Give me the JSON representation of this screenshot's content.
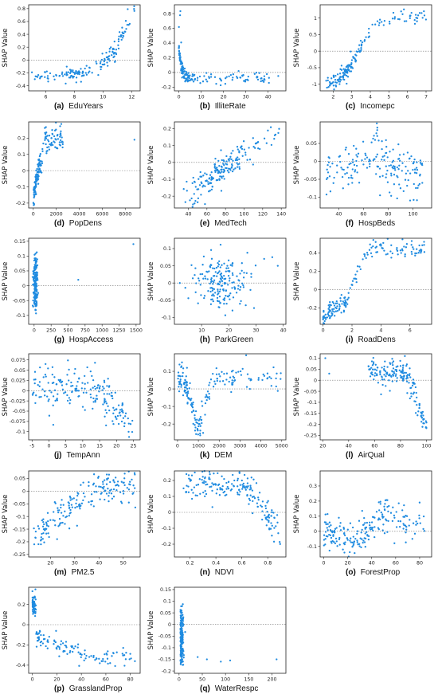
{
  "colors": {
    "points": "#1f8be0",
    "zero_line": "#777777",
    "axes": "#222222"
  },
  "chart_data": [
    {
      "type": "scatter",
      "letter": "(a)",
      "xlabel": "EduYears",
      "ylabel": "SHAP Value",
      "xlim": [
        4.8,
        12.6
      ],
      "ylim": [
        -0.48,
        0.86
      ],
      "xticks": [
        6,
        8,
        10,
        12
      ],
      "yticks": [
        -0.4,
        -0.2,
        0.0,
        0.2,
        0.4,
        0.6,
        0.8
      ],
      "pattern": "convex",
      "params": {
        "x0": 5.0,
        "x1": 12.2,
        "y0": -0.25,
        "y1": 0.78,
        "k": 4.5,
        "noise": 0.06,
        "n": 160,
        "c0": 8.2,
        "c1": 10.6,
        "cw": 0.55
      }
    },
    {
      "type": "scatter",
      "letter": "(b)",
      "xlabel": "IlliteRate",
      "ylabel": "SHAP Value",
      "xlim": [
        -2,
        48
      ],
      "ylim": [
        -0.25,
        0.92
      ],
      "xticks": [
        0,
        10,
        20,
        30,
        40
      ],
      "yticks": [
        -0.2,
        0.0,
        0.2,
        0.4,
        0.6,
        0.8
      ],
      "pattern": "decay",
      "params": {
        "x0": 0.3,
        "x1": 45,
        "yhigh": 0.35,
        "ylow": -0.08,
        "rate": 0.9,
        "noise": 0.04,
        "n": 170,
        "c0": 1.5,
        "cw": 3.0
      }
    },
    {
      "type": "scatter",
      "letter": "(c)",
      "xlabel": "Incomepc",
      "ylabel": "SHAP Value",
      "xlim": [
        1.3,
        7.3
      ],
      "ylim": [
        -1.2,
        1.4
      ],
      "xticks": [
        2,
        3,
        4,
        5,
        6,
        7
      ],
      "yticks": [
        -1.0,
        -0.5,
        0.0,
        0.5,
        1.0
      ],
      "pattern": "sigmoid",
      "params": {
        "x0": 1.5,
        "x1": 7.0,
        "ylow": -1.0,
        "yhigh": 1.05,
        "mid": 3.4,
        "k": 2.2,
        "noise": 0.12,
        "n": 160,
        "c0": 2.7,
        "cw": 0.5
      }
    },
    {
      "type": "scatter",
      "letter": "(d)",
      "xlabel": "PopDens",
      "ylabel": "SHAP Value",
      "xlim": [
        -400,
        9300
      ],
      "ylim": [
        -0.23,
        0.3
      ],
      "xticks": [
        0,
        2000,
        4000,
        6000,
        8000
      ],
      "yticks": [
        -0.2,
        -0.1,
        0.0,
        0.1,
        0.2
      ],
      "pattern": "rise",
      "params": {
        "x0": 0,
        "x1": 9000,
        "ylow": -0.2,
        "yhigh": 0.2,
        "scale": 600,
        "noise": 0.04,
        "n": 160,
        "c0": 300,
        "cw": 300
      }
    },
    {
      "type": "scatter",
      "letter": "(e)",
      "xlabel": "MedTech",
      "ylabel": "SHAP Value",
      "xlim": [
        25,
        145
      ],
      "ylim": [
        -0.27,
        0.24
      ],
      "xticks": [
        40,
        60,
        80,
        100,
        120,
        140
      ],
      "yticks": [
        -0.2,
        -0.1,
        0.0,
        0.1,
        0.2
      ],
      "pattern": "linear",
      "params": {
        "x0": 35,
        "x1": 138,
        "y0": -0.2,
        "y1": 0.18,
        "noise": 0.045,
        "n": 180,
        "c0": 75,
        "cw": 12
      }
    },
    {
      "type": "scatter",
      "letter": "(f)",
      "xlabel": "HospBeds",
      "ylabel": "SHAP Value",
      "xlim": [
        25,
        115
      ],
      "ylim": [
        -0.13,
        0.11
      ],
      "xticks": [
        40,
        60,
        80,
        100
      ],
      "yticks": [
        -0.1,
        -0.05,
        0.0,
        0.05
      ],
      "pattern": "hump",
      "params": {
        "x0": 30,
        "x1": 108,
        "center": 68,
        "width": 14,
        "base": -0.03,
        "amp": 0.06,
        "noise": 0.035,
        "n": 180
      }
    },
    {
      "type": "scatter",
      "letter": "(g)",
      "xlabel": "HospAccess",
      "ylabel": "SHAP Value",
      "xlim": [
        -80,
        1560
      ],
      "ylim": [
        -0.13,
        0.16
      ],
      "xticks": [
        0,
        250,
        500,
        750,
        1000,
        1250,
        1500
      ],
      "yticks": [
        -0.1,
        -0.05,
        0.0,
        0.05,
        0.1,
        0.15
      ],
      "pattern": "column",
      "params": {
        "xc": 20,
        "xw": 15,
        "ylow": -0.11,
        "yhigh": 0.14,
        "n": 170,
        "extra": [
          [
            650,
            0.02
          ],
          [
            1460,
            0.14
          ]
        ]
      }
    },
    {
      "type": "scatter",
      "letter": "(h)",
      "xlabel": "ParkGreen",
      "ylabel": "SHAP Value",
      "xlim": [
        0,
        41
      ],
      "ylim": [
        -0.12,
        0.13
      ],
      "xticks": [
        10,
        20,
        30,
        40
      ],
      "yticks": [
        -0.1,
        -0.05,
        0.0,
        0.05,
        0.1
      ],
      "pattern": "blob",
      "params": {
        "cx": 17,
        "cy": 0.0,
        "sx": 4.5,
        "sy": 0.04,
        "n": 180,
        "extra": [
          [
            33,
            0.07
          ],
          [
            36,
            0.075
          ],
          [
            38,
            0.05
          ],
          [
            2,
            0.0
          ]
        ]
      }
    },
    {
      "type": "scatter",
      "letter": "(i)",
      "xlabel": "RoadDens",
      "ylabel": "SHAP Value",
      "xlim": [
        -0.2,
        7.5
      ],
      "ylim": [
        -0.38,
        0.56
      ],
      "xticks": [
        0,
        2,
        4,
        6
      ],
      "yticks": [
        -0.2,
        0.0,
        0.2,
        0.4
      ],
      "pattern": "piecewise",
      "params": {
        "x0": 0.0,
        "x1": 7.0,
        "knee": 1.6,
        "ylow": -0.3,
        "ymid": -0.12,
        "yhigh": 0.45,
        "noise": 0.05,
        "n": 170
      }
    },
    {
      "type": "scatter",
      "letter": "(j)",
      "xlabel": "TempAnn",
      "ylabel": "SHAP Value",
      "xlim": [
        -6,
        27
      ],
      "ylim": [
        -0.12,
        0.09
      ],
      "xticks": [
        -5,
        0,
        5,
        10,
        15,
        20,
        25
      ],
      "yticks": [
        -0.1,
        -0.075,
        -0.05,
        -0.025,
        0.0,
        0.025,
        0.05,
        0.075
      ],
      "pattern": "drop",
      "params": {
        "x0": -5,
        "x1": 25,
        "knee": 15,
        "yflat": 0.005,
        "yend": -0.09,
        "noise": 0.025,
        "n": 190
      }
    },
    {
      "type": "scatter",
      "letter": "(k)",
      "xlabel": "DEM",
      "ylabel": "SHAP Value",
      "xlim": [
        -150,
        5200
      ],
      "ylim": [
        -0.29,
        0.2
      ],
      "xticks": [
        0,
        1000,
        2000,
        3000,
        4000,
        5000
      ],
      "yticks": [
        -0.2,
        -0.1,
        0.0,
        0.1
      ],
      "pattern": "valley",
      "params": {
        "x0": 0,
        "x1": 5000,
        "center": 1000,
        "width": 450,
        "base": 0.06,
        "depth": -0.28,
        "noise": 0.04,
        "n": 180
      }
    },
    {
      "type": "scatter",
      "letter": "(l)",
      "xlabel": "AirQual",
      "ylabel": "SHAP Value",
      "xlim": [
        18,
        104
      ],
      "ylim": [
        -0.27,
        0.12
      ],
      "xticks": [
        20,
        40,
        60,
        80,
        100
      ],
      "yticks": [
        -0.25,
        -0.2,
        -0.15,
        -0.1,
        -0.05,
        0.0,
        0.05,
        0.1
      ],
      "pattern": "fall",
      "params": {
        "x0": 55,
        "x1": 100,
        "knee": 82,
        "yflat": 0.04,
        "yend": -0.22,
        "noise": 0.03,
        "n": 180,
        "extra": [
          [
            22,
            0.1
          ],
          [
            25,
            0.03
          ]
        ]
      }
    },
    {
      "type": "scatter",
      "letter": "(m)",
      "xlabel": "PM2.5",
      "ylabel": "SHAP Value",
      "xlim": [
        11,
        57
      ],
      "ylim": [
        -0.26,
        0.08
      ],
      "xticks": [
        20,
        30,
        40,
        50
      ],
      "yticks": [
        -0.25,
        -0.2,
        -0.15,
        -0.1,
        -0.05,
        0.0,
        0.05
      ],
      "pattern": "sigmoid",
      "params": {
        "x0": 13,
        "x1": 55,
        "ylow": -0.18,
        "yhigh": 0.03,
        "mid": 27,
        "k": 0.18,
        "noise": 0.035,
        "n": 190
      }
    },
    {
      "type": "scatter",
      "letter": "(n)",
      "xlabel": "NDVI",
      "ylabel": "SHAP Value",
      "xlim": [
        0.08,
        0.94
      ],
      "ylim": [
        -0.28,
        0.26
      ],
      "xticks": [
        0.2,
        0.4,
        0.6,
        0.8
      ],
      "yticks": [
        -0.2,
        -0.1,
        0.0,
        0.1,
        0.2
      ],
      "pattern": "fall",
      "params": {
        "x0": 0.15,
        "x1": 0.9,
        "knee": 0.62,
        "yflat": 0.17,
        "yend": -0.15,
        "noise": 0.05,
        "n": 190
      }
    },
    {
      "type": "scatter",
      "letter": "(o)",
      "xlabel": "ForestProp",
      "ylabel": "SHAP Value",
      "xlim": [
        -3,
        90
      ],
      "ylim": [
        -0.17,
        0.4
      ],
      "xticks": [
        0,
        20,
        40,
        60,
        80
      ],
      "yticks": [
        -0.1,
        0.0,
        0.1,
        0.2,
        0.3
      ],
      "pattern": "wave",
      "params": {
        "x0": 0,
        "x1": 85,
        "noise": 0.06,
        "n": 200
      }
    },
    {
      "type": "scatter",
      "letter": "(p)",
      "xlabel": "GrasslandProp",
      "ylabel": "SHAP Value",
      "xlim": [
        -3,
        88
      ],
      "ylim": [
        -0.48,
        0.37
      ],
      "xticks": [
        0,
        20,
        40,
        60,
        80
      ],
      "yticks": [
        -0.4,
        -0.2,
        0.0,
        0.2
      ],
      "pattern": "step",
      "params": {
        "x0": 0,
        "x1": 84,
        "stepx": 3,
        "yhigh": 0.2,
        "ymid": -0.12,
        "yend": -0.32,
        "noise": 0.05,
        "n": 180
      }
    },
    {
      "type": "scatter",
      "letter": "(q)",
      "xlabel": "WaterRespc",
      "ylabel": "SHAP Value",
      "xlim": [
        -10,
        230
      ],
      "ylim": [
        -0.21,
        0.16
      ],
      "xticks": [
        0,
        50,
        100,
        150,
        200
      ],
      "yticks": [
        -0.2,
        -0.15,
        -0.1,
        -0.05,
        0.0,
        0.05,
        0.1,
        0.15
      ],
      "pattern": "spike",
      "params": {
        "xc": 3,
        "xw": 3,
        "ylow": -0.18,
        "yhigh": 0.14,
        "n": 170,
        "extra": [
          [
            40,
            -0.14
          ],
          [
            60,
            -0.15
          ],
          [
            90,
            -0.16
          ],
          [
            110,
            -0.155
          ],
          [
            210,
            -0.15
          ]
        ]
      }
    }
  ]
}
